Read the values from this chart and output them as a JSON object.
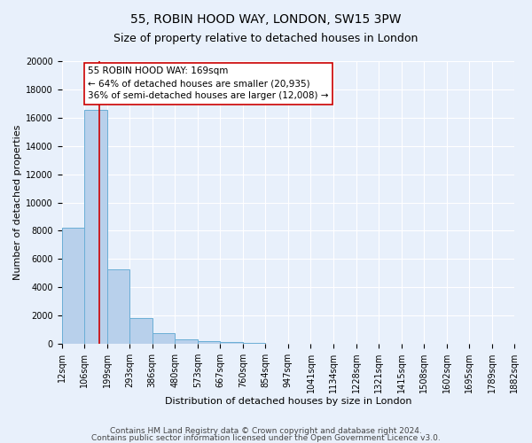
{
  "title": "55, ROBIN HOOD WAY, LONDON, SW15 3PW",
  "subtitle": "Size of property relative to detached houses in London",
  "xlabel": "Distribution of detached houses by size in London",
  "ylabel": "Number of detached properties",
  "bin_edges": [
    12,
    106,
    199,
    293,
    386,
    480,
    573,
    667,
    760,
    854,
    947,
    1041,
    1134,
    1228,
    1321,
    1415,
    1508,
    1602,
    1695,
    1789,
    1882
  ],
  "bin_labels": [
    "12sqm",
    "106sqm",
    "199sqm",
    "293sqm",
    "386sqm",
    "480sqm",
    "573sqm",
    "667sqm",
    "760sqm",
    "854sqm",
    "947sqm",
    "1041sqm",
    "1134sqm",
    "1228sqm",
    "1321sqm",
    "1415sqm",
    "1508sqm",
    "1602sqm",
    "1695sqm",
    "1789sqm",
    "1882sqm"
  ],
  "counts": [
    8200,
    16550,
    5250,
    1850,
    750,
    320,
    190,
    120,
    80,
    0,
    0,
    0,
    0,
    0,
    0,
    0,
    0,
    0,
    0,
    0
  ],
  "bar_color": "#b8d0eb",
  "bar_edge_color": "#6aaed6",
  "property_size": 169,
  "property_line_color": "#cc0000",
  "annotation_text": "55 ROBIN HOOD WAY: 169sqm\n← 64% of detached houses are smaller (20,935)\n36% of semi-detached houses are larger (12,008) →",
  "annotation_box_color": "#ffffff",
  "annotation_box_edge_color": "#cc0000",
  "ylim": [
    0,
    20000
  ],
  "yticks": [
    0,
    2000,
    4000,
    6000,
    8000,
    10000,
    12000,
    14000,
    16000,
    18000,
    20000
  ],
  "footer_line1": "Contains HM Land Registry data © Crown copyright and database right 2024.",
  "footer_line2": "Contains public sector information licensed under the Open Government Licence v3.0.",
  "bg_color": "#e8f0fb",
  "plot_bg_color": "#e8f0fb",
  "grid_color": "#ffffff",
  "title_fontsize": 10,
  "subtitle_fontsize": 9,
  "axis_label_fontsize": 8,
  "tick_fontsize": 7,
  "footer_fontsize": 6.5,
  "annotation_fontsize": 7.5
}
